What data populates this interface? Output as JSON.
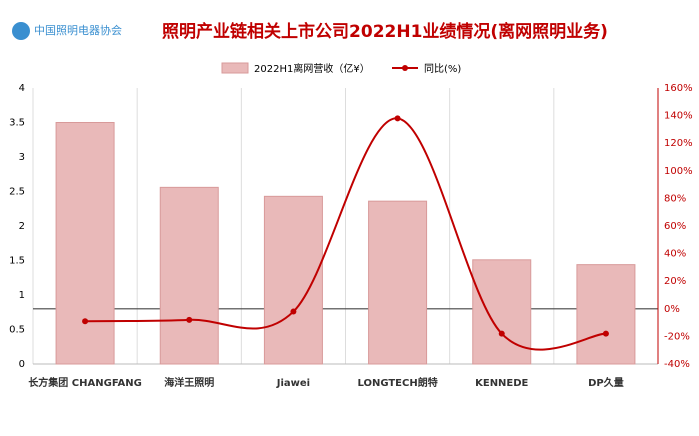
{
  "chart_data": {
    "type": "bar-line",
    "logo": "中国照明电器协会",
    "title": "照明产业链相关上市公司2022H1业绩情况(离网照明业务)",
    "categories": [
      "长方集团 CHANGFANG",
      "海洋王照明",
      "Jiawei",
      "LONGTECH朗特",
      "KENNEDE",
      "DP久量"
    ],
    "series": [
      {
        "name": "2022H1离网营收（亿¥）",
        "type": "bar",
        "color": "#e9b9b9",
        "values": [
          3.5,
          2.56,
          2.43,
          2.36,
          1.51,
          1.44
        ]
      },
      {
        "name": "同比(%)",
        "type": "line",
        "axis": "y2",
        "color": "#c00000",
        "values": [
          -9,
          -8,
          -2,
          138,
          -18,
          -18
        ]
      }
    ],
    "ylim": [
      0,
      4
    ],
    "yticks": [
      0,
      0.5,
      1,
      1.5,
      2,
      2.5,
      3,
      3.5,
      4
    ],
    "y2lim": [
      -40,
      160
    ],
    "y2ticks": [
      {
        "value": -40,
        "label": "-40%"
      },
      {
        "value": -20,
        "label": "-20%"
      },
      {
        "value": 0,
        "label": "0%"
      },
      {
        "value": 20,
        "label": "20%"
      },
      {
        "value": 40,
        "label": "40%"
      },
      {
        "value": 60,
        "label": "60%"
      },
      {
        "value": 80,
        "label": "80%"
      },
      {
        "value": 100,
        "label": "100%"
      },
      {
        "value": 120,
        "label": "120%"
      },
      {
        "value": 140,
        "label": "140%"
      },
      {
        "value": 160,
        "label": "160%"
      }
    ],
    "grid": true
  }
}
